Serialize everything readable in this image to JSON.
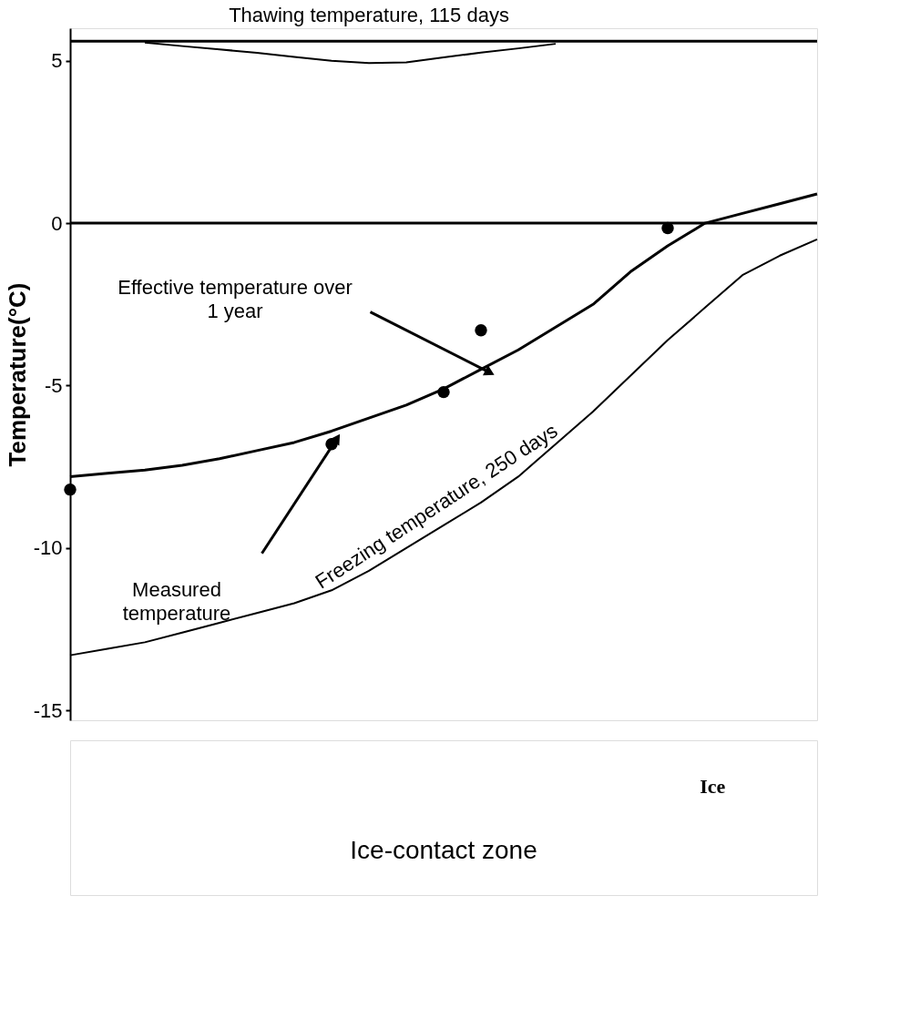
{
  "chart_data": {
    "type": "line",
    "ylabel": "Temperature(°C)",
    "categories": [
      null,
      null,
      null,
      null,
      null,
      null,
      null,
      null,
      null,
      null,
      null,
      null,
      null,
      null,
      null,
      null,
      null,
      null,
      null,
      null,
      null
    ],
    "ylim": [
      -15.3,
      6.0
    ],
    "yticks": [
      5,
      0,
      -5,
      -10,
      -15
    ],
    "tick_labels": "y",
    "grid": false,
    "legend": false,
    "marker": "none",
    "line_style": "solid",
    "series": [
      {
        "name": "Thawing temperature, 115 days",
        "color": "#000000",
        "values": [
          null,
          null,
          5.56,
          5.45,
          5.35,
          5.24,
          5.12,
          5.0,
          4.93,
          4.95,
          5.1,
          5.25,
          5.38,
          5.52,
          null,
          null,
          null,
          null,
          null,
          null,
          null
        ]
      },
      {
        "color": "#000000",
        "values": [
          -7.8,
          -7.7,
          -7.6,
          -7.45,
          -7.25,
          -7.0,
          -6.75,
          -6.4,
          -6.0,
          -5.6,
          -5.1,
          -4.5,
          -3.9,
          -3.2,
          -2.5,
          -1.5,
          -0.7,
          0.0,
          0.3,
          0.6,
          0.9
        ]
      },
      {
        "name": "Freezing temperature, 250 days",
        "color": "#000000",
        "values": [
          -13.3,
          -13.1,
          -12.9,
          -12.6,
          -12.3,
          -12.0,
          -11.7,
          -11.3,
          -10.7,
          -10.0,
          -9.3,
          -8.6,
          -7.8,
          -6.8,
          -5.8,
          -4.7,
          -3.6,
          -2.6,
          -1.6,
          -1.0,
          -0.5
        ]
      },
      {
        "type": "scatter",
        "marker": "circle",
        "color": "#000000",
        "values": [
          -8.2,
          null,
          null,
          null,
          null,
          null,
          null,
          -6.8,
          null,
          null,
          -5.2,
          -3.3,
          null,
          null,
          null,
          null,
          -0.15,
          null,
          null,
          null,
          null
        ]
      }
    ],
    "ref_lines": [
      {
        "axis": "y",
        "value": 0,
        "color": "#000000"
      },
      {
        "axis": "y",
        "value": 5.6,
        "color": "#000000"
      }
    ],
    "annotations": [
      "Effective temperature over 1 year",
      "Measured temperature",
      "Ice",
      "Ice-contact zone"
    ]
  }
}
